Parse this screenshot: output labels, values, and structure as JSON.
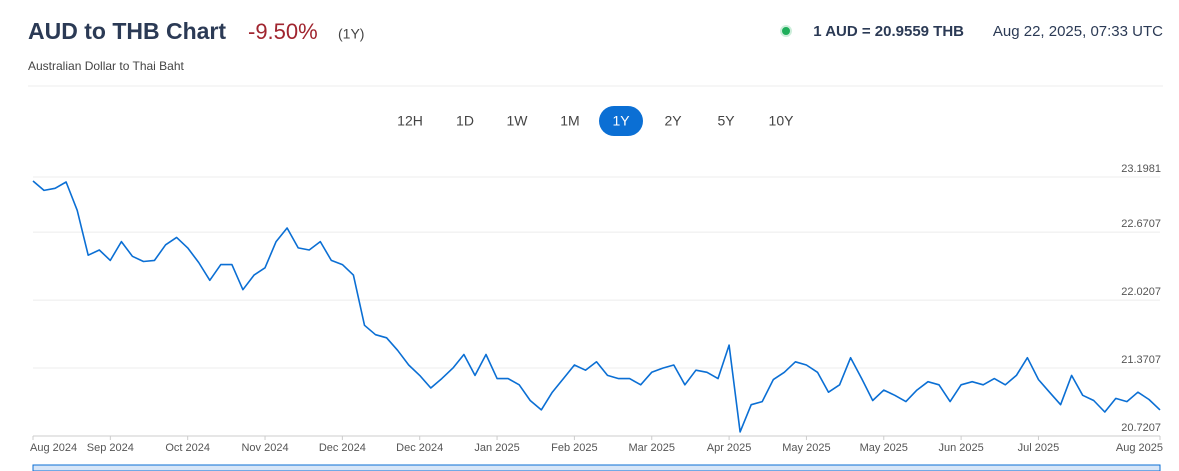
{
  "header": {
    "title": "AUD to THB Chart",
    "change": "-9.50%",
    "period": "(1Y)",
    "subtitle": "Australian Dollar to Thai Baht",
    "rate": "1 AUD = 20.9559 THB",
    "timestamp": "Aug 22, 2025, 07:33 UTC"
  },
  "range_buttons": {
    "labels": [
      "12H",
      "1D",
      "1W",
      "1M",
      "1Y",
      "2Y",
      "5Y",
      "10Y"
    ],
    "active_index": 4
  },
  "chart_data": {
    "type": "line",
    "color": "#0b6fd4",
    "grid": true,
    "values": [
      23.16,
      23.07,
      23.09,
      23.15,
      22.88,
      22.45,
      22.5,
      22.4,
      22.58,
      22.44,
      22.39,
      22.4,
      22.55,
      22.62,
      22.52,
      22.38,
      22.21,
      22.36,
      22.36,
      22.12,
      22.26,
      22.33,
      22.58,
      22.71,
      22.52,
      22.5,
      22.58,
      22.4,
      22.36,
      22.26,
      21.78,
      21.69,
      21.66,
      21.54,
      21.4,
      21.3,
      21.18,
      21.27,
      21.37,
      21.5,
      21.3,
      21.5,
      21.27,
      21.27,
      21.21,
      21.06,
      20.97,
      21.14,
      21.27,
      21.4,
      21.35,
      21.43,
      21.3,
      21.27,
      21.27,
      21.21,
      21.33,
      21.37,
      21.4,
      21.21,
      21.35,
      21.33,
      21.27,
      21.59,
      20.76,
      21.02,
      21.05,
      21.26,
      21.33,
      21.43,
      21.4,
      21.33,
      21.14,
      21.21,
      21.47,
      21.27,
      21.06,
      21.16,
      21.11,
      21.05,
      21.16,
      21.24,
      21.21,
      21.05,
      21.21,
      21.24,
      21.21,
      21.27,
      21.21,
      21.3,
      21.47,
      21.26,
      21.14,
      21.02,
      21.3,
      21.11,
      21.06,
      20.95,
      21.08,
      21.05,
      21.14,
      21.07,
      20.97
    ],
    "xlim": [
      0,
      102
    ],
    "xticks": [
      {
        "value": 0,
        "label": "Aug 2024"
      },
      {
        "value": 7,
        "label": "Sep 2024"
      },
      {
        "value": 14,
        "label": "Oct 2024"
      },
      {
        "value": 21,
        "label": "Nov 2024"
      },
      {
        "value": 28,
        "label": "Dec 2024"
      },
      {
        "value": 35,
        "label": "Dec 2024"
      },
      {
        "value": 42,
        "label": "Jan 2025"
      },
      {
        "value": 49,
        "label": "Feb 2025"
      },
      {
        "value": 56,
        "label": "Mar 2025"
      },
      {
        "value": 63,
        "label": "Apr 2025"
      },
      {
        "value": 70,
        "label": "May 2025"
      },
      {
        "value": 77,
        "label": "May 2025"
      },
      {
        "value": 84,
        "label": "Jun 2025"
      },
      {
        "value": 91,
        "label": "Jul 2025"
      },
      {
        "value": 102,
        "label": "Aug 2025"
      }
    ],
    "ylim": [
      20.7207,
      23.1981
    ],
    "yticks": [
      23.1981,
      22.6707,
      22.0207,
      21.3707,
      20.7207
    ]
  }
}
